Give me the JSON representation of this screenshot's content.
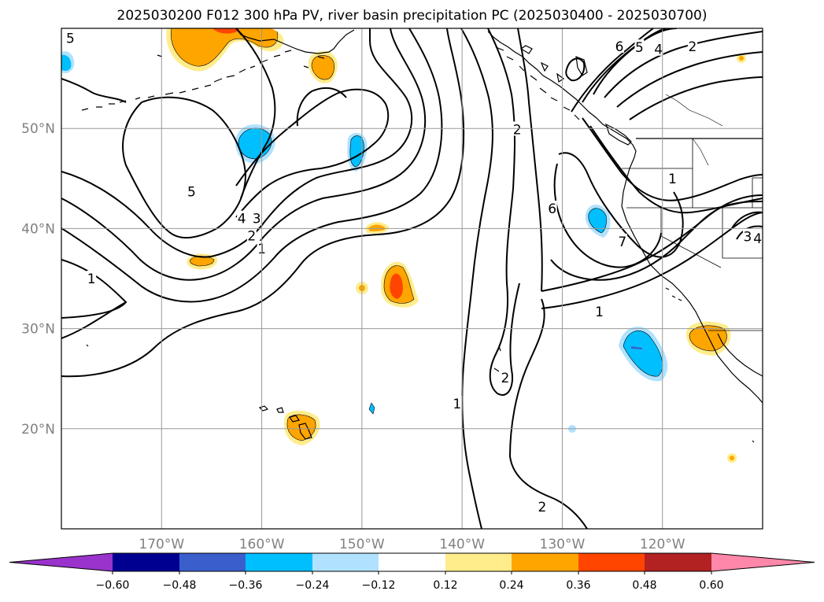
{
  "title": "2025030200 F012 300 hPa PV, river basin precipitation PC (2025030400 - 2025030700)",
  "map": {
    "lon_range": [
      -180,
      -110
    ],
    "lat_range": [
      10,
      60
    ],
    "lon_ticks": [
      {
        "lon": -170,
        "label": "170°W"
      },
      {
        "lon": -160,
        "label": "160°W"
      },
      {
        "lon": -150,
        "label": "150°W"
      },
      {
        "lon": -140,
        "label": "140°W"
      },
      {
        "lon": -130,
        "label": "130°W"
      },
      {
        "lon": -120,
        "label": "120°W"
      }
    ],
    "lat_ticks": [
      {
        "lat": 50,
        "label": "50°N"
      },
      {
        "lat": 40,
        "label": "40°N"
      },
      {
        "lat": 30,
        "label": "30°N"
      },
      {
        "lat": 20,
        "label": "20°N"
      }
    ],
    "contour_labels": [
      {
        "text": "5",
        "lon": -179.1,
        "lat": 59.0
      },
      {
        "text": "5",
        "lon": -167,
        "lat": 43.7
      },
      {
        "text": "1",
        "lon": -177,
        "lat": 35
      },
      {
        "text": "4",
        "lon": -162,
        "lat": 41
      },
      {
        "text": "3",
        "lon": -160.5,
        "lat": 41
      },
      {
        "text": "2",
        "lon": -161,
        "lat": 39.3
      },
      {
        "text": "1",
        "lon": -160,
        "lat": 38
      },
      {
        "text": "2",
        "lon": -134.5,
        "lat": 49.9
      },
      {
        "text": "6",
        "lon": -124.3,
        "lat": 58.2
      },
      {
        "text": "5",
        "lon": -122.3,
        "lat": 58.1
      },
      {
        "text": "4",
        "lon": -120.4,
        "lat": 57.9
      },
      {
        "text": "2",
        "lon": -117,
        "lat": 58.2
      },
      {
        "text": "1",
        "lon": -119,
        "lat": 45
      },
      {
        "text": "6",
        "lon": -131,
        "lat": 42
      },
      {
        "text": "7",
        "lon": -124,
        "lat": 38.7
      },
      {
        "text": "1",
        "lon": -126.3,
        "lat": 31.7
      },
      {
        "text": "2",
        "lon": -135.7,
        "lat": 25.1
      },
      {
        "text": "1",
        "lon": -140.5,
        "lat": 22.5
      },
      {
        "text": "2",
        "lon": -132,
        "lat": 12.2
      },
      {
        "text": "3",
        "lon": -111.5,
        "lat": 39.2
      },
      {
        "text": "4",
        "lon": -110.5,
        "lat": 39
      }
    ]
  },
  "colorbar": {
    "colors": [
      "#9933cc",
      "#000090",
      "#3a5fcd",
      "#00bfff",
      "#b0e2ff",
      "#ffffff",
      "#ffec8b",
      "#ffa500",
      "#ff4500",
      "#b22222",
      "#ff88aa"
    ],
    "tick_labels": [
      "−0.60",
      "−0.48",
      "−0.36",
      "−0.24",
      "−0.12",
      "0.12",
      "0.24",
      "0.36",
      "0.48",
      "0.60"
    ]
  }
}
